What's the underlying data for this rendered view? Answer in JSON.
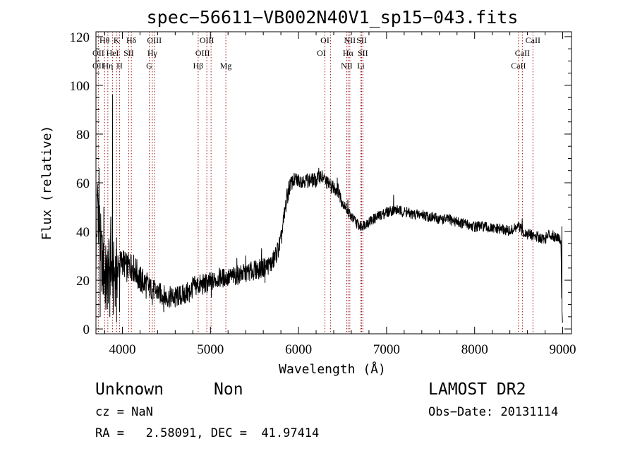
{
  "chart_data": {
    "type": "line",
    "title": "spec−56611−VB002N40V1_sp15−043.fits",
    "xlabel": "Wavelength (Å)",
    "ylabel": "Flux (relative)",
    "xlim": [
      3700,
      9100
    ],
    "ylim": [
      -2,
      122
    ],
    "xticks": [
      4000,
      5000,
      6000,
      7000,
      8000,
      9000
    ],
    "yticks": [
      0,
      20,
      40,
      60,
      80,
      100,
      120
    ],
    "grid": false,
    "series": [
      {
        "color": "#000000",
        "anchors": [
          [
            3700,
            28
          ],
          [
            3720,
            55
          ],
          [
            3740,
            42
          ],
          [
            3760,
            30
          ],
          [
            3780,
            24
          ],
          [
            3800,
            22
          ],
          [
            3830,
            20
          ],
          [
            3860,
            26
          ],
          [
            3900,
            22
          ],
          [
            3950,
            25
          ],
          [
            4000,
            28
          ],
          [
            4050,
            25
          ],
          [
            4100,
            26
          ],
          [
            4150,
            24
          ],
          [
            4200,
            20
          ],
          [
            4250,
            19
          ],
          [
            4300,
            17
          ],
          [
            4350,
            16
          ],
          [
            4400,
            15
          ],
          [
            4500,
            13
          ],
          [
            4600,
            13
          ],
          [
            4700,
            14
          ],
          [
            4750,
            15
          ],
          [
            4800,
            17
          ],
          [
            4850,
            18
          ],
          [
            4900,
            18
          ],
          [
            5000,
            19
          ],
          [
            5050,
            20
          ],
          [
            5100,
            21
          ],
          [
            5200,
            21
          ],
          [
            5300,
            22
          ],
          [
            5400,
            23
          ],
          [
            5500,
            24
          ],
          [
            5600,
            25
          ],
          [
            5700,
            27
          ],
          [
            5750,
            31
          ],
          [
            5800,
            36
          ],
          [
            5830,
            44
          ],
          [
            5860,
            52
          ],
          [
            5900,
            59
          ],
          [
            5950,
            61
          ],
          [
            6000,
            61
          ],
          [
            6100,
            61
          ],
          [
            6200,
            61
          ],
          [
            6250,
            63
          ],
          [
            6300,
            61
          ],
          [
            6350,
            59
          ],
          [
            6400,
            58
          ],
          [
            6450,
            57
          ],
          [
            6500,
            52
          ],
          [
            6550,
            49
          ],
          [
            6600,
            46
          ],
          [
            6650,
            44
          ],
          [
            6700,
            42
          ],
          [
            6750,
            43
          ],
          [
            6800,
            44
          ],
          [
            6900,
            46
          ],
          [
            7000,
            48
          ],
          [
            7100,
            49
          ],
          [
            7200,
            48
          ],
          [
            7300,
            47
          ],
          [
            7400,
            47
          ],
          [
            7500,
            46
          ],
          [
            7600,
            45
          ],
          [
            7700,
            45
          ],
          [
            7800,
            44
          ],
          [
            7900,
            43
          ],
          [
            8000,
            42
          ],
          [
            8100,
            42
          ],
          [
            8200,
            41
          ],
          [
            8300,
            41
          ],
          [
            8400,
            40
          ],
          [
            8450,
            41
          ],
          [
            8500,
            42
          ],
          [
            8550,
            40
          ],
          [
            8600,
            39
          ],
          [
            8700,
            38
          ],
          [
            8800,
            37
          ],
          [
            8850,
            39
          ],
          [
            8900,
            38
          ],
          [
            8950,
            38
          ],
          [
            8980,
            36
          ],
          [
            8990,
            10
          ],
          [
            9000,
            0
          ]
        ],
        "spikes": [
          [
            3735,
            66
          ],
          [
            3748,
            5
          ],
          [
            3790,
            50
          ],
          [
            3812,
            8
          ],
          [
            3835,
            32
          ],
          [
            3858,
            5
          ],
          [
            3868,
            46
          ],
          [
            3889,
            96
          ],
          [
            3897,
            6
          ],
          [
            3934,
            3
          ],
          [
            3968,
            7
          ],
          [
            4100,
            30
          ],
          [
            4340,
            10
          ],
          [
            4470,
            7
          ],
          [
            4600,
            9
          ],
          [
            4760,
            11
          ],
          [
            5010,
            13
          ],
          [
            5300,
            29
          ],
          [
            5400,
            30
          ],
          [
            5580,
            33
          ],
          [
            5620,
            19
          ],
          [
            6230,
            66
          ],
          [
            6440,
            62
          ],
          [
            6560,
            53
          ],
          [
            6590,
            45
          ],
          [
            7080,
            55
          ],
          [
            7230,
            50
          ],
          [
            8540,
            45
          ],
          [
            8990,
            42
          ]
        ]
      }
    ],
    "spectral_lines": [
      {
        "name": "Hθ",
        "wave": 3798,
        "row": 0,
        "dx": 0
      },
      {
        "name": "K",
        "wave": 3934,
        "row": 0,
        "dx": 0
      },
      {
        "name": "Hδ",
        "wave": 4102,
        "row": 0,
        "dx": 0
      },
      {
        "name": "OIII",
        "wave": 4363,
        "row": 0,
        "dx": 0
      },
      {
        "name": "OIII",
        "wave": 4959,
        "row": 0,
        "dx": 0
      },
      {
        "name": "OI",
        "wave": 6300,
        "row": 0,
        "dx": 0
      },
      {
        "name": "NII",
        "wave": 6583,
        "row": 0,
        "dx": 0
      },
      {
        "name": "SII",
        "wave": 6717,
        "row": 0,
        "dx": 0
      },
      {
        "name": "CaII",
        "wave": 8662,
        "row": 0,
        "dx": 0
      },
      {
        "name": "OII",
        "wave": 3727,
        "row": 1,
        "dx": 0
      },
      {
        "name": "HeI",
        "wave": 3889,
        "row": 1,
        "dx": 0
      },
      {
        "name": "SII",
        "wave": 4072,
        "row": 1,
        "dx": 0
      },
      {
        "name": "Hγ",
        "wave": 4340,
        "row": 1,
        "dx": 0
      },
      {
        "name": "OIII",
        "wave": 4959,
        "row": 1,
        "dx": -6
      },
      {
        "name": "OI",
        "wave": 6300,
        "row": 1,
        "dx": -5
      },
      {
        "name": "Hα",
        "wave": 6563,
        "row": 1,
        "dx": 0
      },
      {
        "name": "SII",
        "wave": 6731,
        "row": 1,
        "dx": 0
      },
      {
        "name": "CaII",
        "wave": 8542,
        "row": 1,
        "dx": 0
      },
      {
        "name": "OII",
        "wave": 3727,
        "row": 2,
        "dx": 0
      },
      {
        "name": "Hη",
        "wave": 3835,
        "row": 2,
        "dx": 0
      },
      {
        "name": "H",
        "wave": 3968,
        "row": 2,
        "dx": 0
      },
      {
        "name": "G",
        "wave": 4305,
        "row": 2,
        "dx": 0
      },
      {
        "name": "Hβ",
        "wave": 4861,
        "row": 2,
        "dx": 0
      },
      {
        "name": "Mg",
        "wave": 5175,
        "row": 2,
        "dx": 0
      },
      {
        "name": "NII",
        "wave": 6548,
        "row": 2,
        "dx": 0
      },
      {
        "name": "Li",
        "wave": 6708,
        "row": 2,
        "dx": 0
      },
      {
        "name": "CaII",
        "wave": 8498,
        "row": 2,
        "dx": 0
      }
    ],
    "line_color": "#a01818",
    "line_positions": [
      3727,
      3798,
      3835,
      3889,
      3934,
      3968,
      4072,
      4102,
      4305,
      4340,
      4363,
      4861,
      4959,
      5007,
      5175,
      6300,
      6363,
      6548,
      6563,
      6583,
      6708,
      6717,
      6731,
      8498,
      8542,
      8662
    ]
  },
  "info": {
    "class": "Unknown",
    "subclass": "Non",
    "cz": "cz = NaN",
    "radec": "RA =   2.58091, DEC =  41.97414",
    "survey": "LAMOST DR2",
    "obsdate": "Obs−Date: 20131114"
  }
}
